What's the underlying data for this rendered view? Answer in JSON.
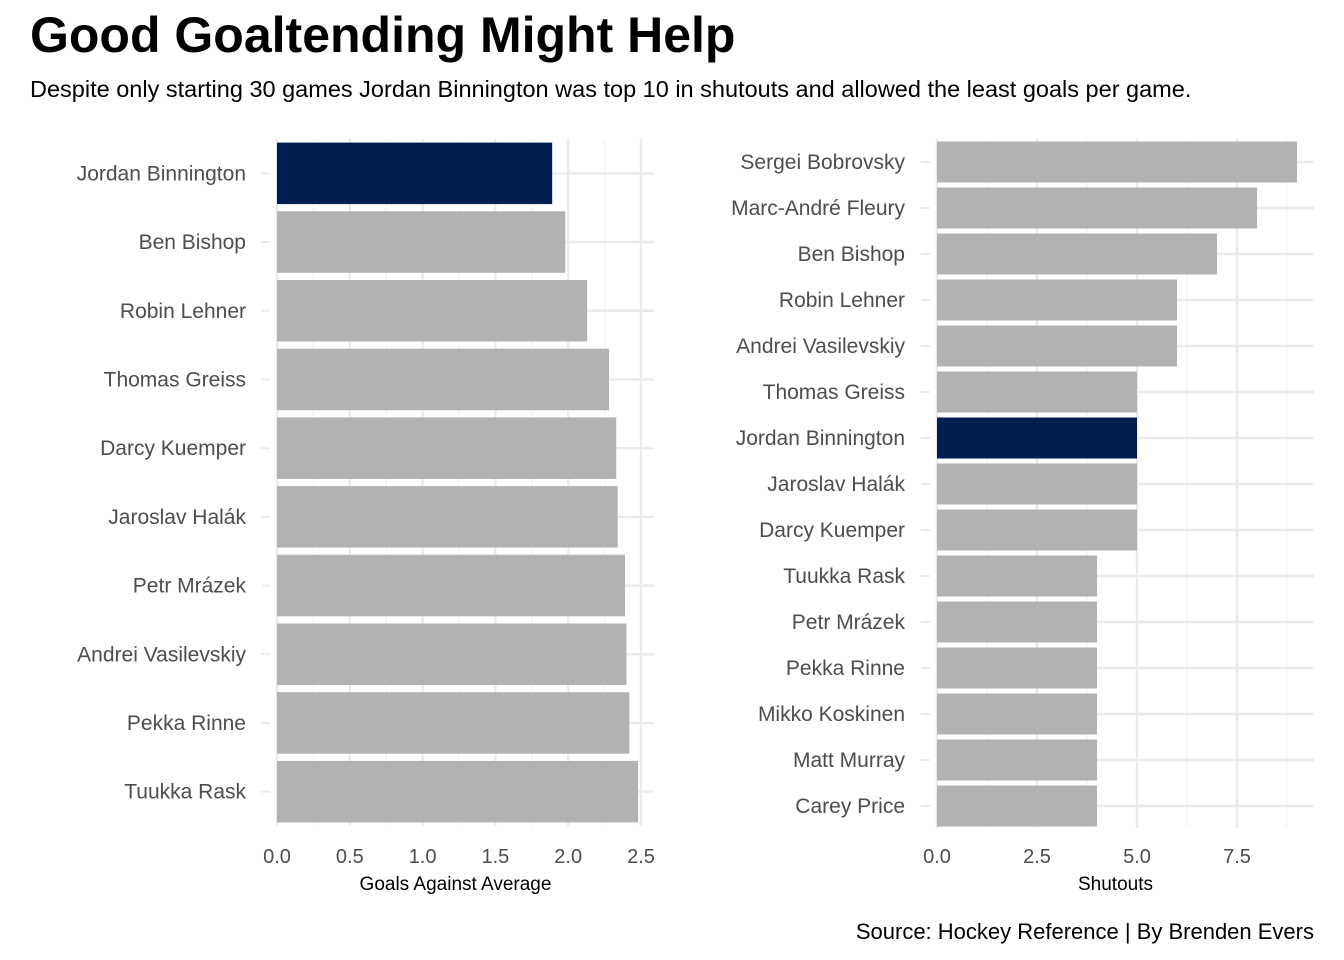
{
  "title": "Good Goaltending Might Help",
  "subtitle": "Despite only starting 30 games Jordan Binnington was top 10 in shutouts and allowed the least goals per game.",
  "caption": "Source: Hockey Reference | By Brenden Evers",
  "colors": {
    "highlight": "#001E50",
    "bar": "#B2B2B2",
    "grid": "#EBEBEB"
  },
  "highlight_player": "Jordan Binnington",
  "chart_data": [
    {
      "type": "bar",
      "orientation": "horizontal",
      "xlabel": "Goals Against Average",
      "xlim": [
        0,
        2.6
      ],
      "xticks": [
        "0.0",
        "0.5",
        "1.0",
        "1.5",
        "2.0",
        "2.5"
      ],
      "grid": true,
      "categories": [
        "Jordan Binnington",
        "Ben Bishop",
        "Robin Lehner",
        "Thomas Greiss",
        "Darcy Kuemper",
        "Jaroslav Halák",
        "Petr Mrázek",
        "Andrei Vasilevskiy",
        "Pekka Rinne",
        "Tuukka Rask"
      ],
      "values": [
        1.89,
        1.98,
        2.13,
        2.28,
        2.33,
        2.34,
        2.39,
        2.4,
        2.42,
        2.48
      ]
    },
    {
      "type": "bar",
      "orientation": "horizontal",
      "xlabel": "Shutouts",
      "xlim": [
        0,
        9.4
      ],
      "xticks": [
        "0.0",
        "2.5",
        "5.0",
        "7.5"
      ],
      "grid": true,
      "categories": [
        "Sergei Bobrovsky",
        "Marc-André Fleury",
        "Ben Bishop",
        "Robin Lehner",
        "Andrei Vasilevskiy",
        "Thomas Greiss",
        "Jordan Binnington",
        "Jaroslav Halák",
        "Darcy Kuemper",
        "Tuukka Rask",
        "Petr Mrázek",
        "Pekka Rinne",
        "Mikko Koskinen",
        "Matt Murray",
        "Carey Price"
      ],
      "values": [
        9,
        8,
        7,
        6,
        6,
        5,
        5,
        5,
        5,
        4,
        4,
        4,
        4,
        4,
        4
      ]
    }
  ]
}
